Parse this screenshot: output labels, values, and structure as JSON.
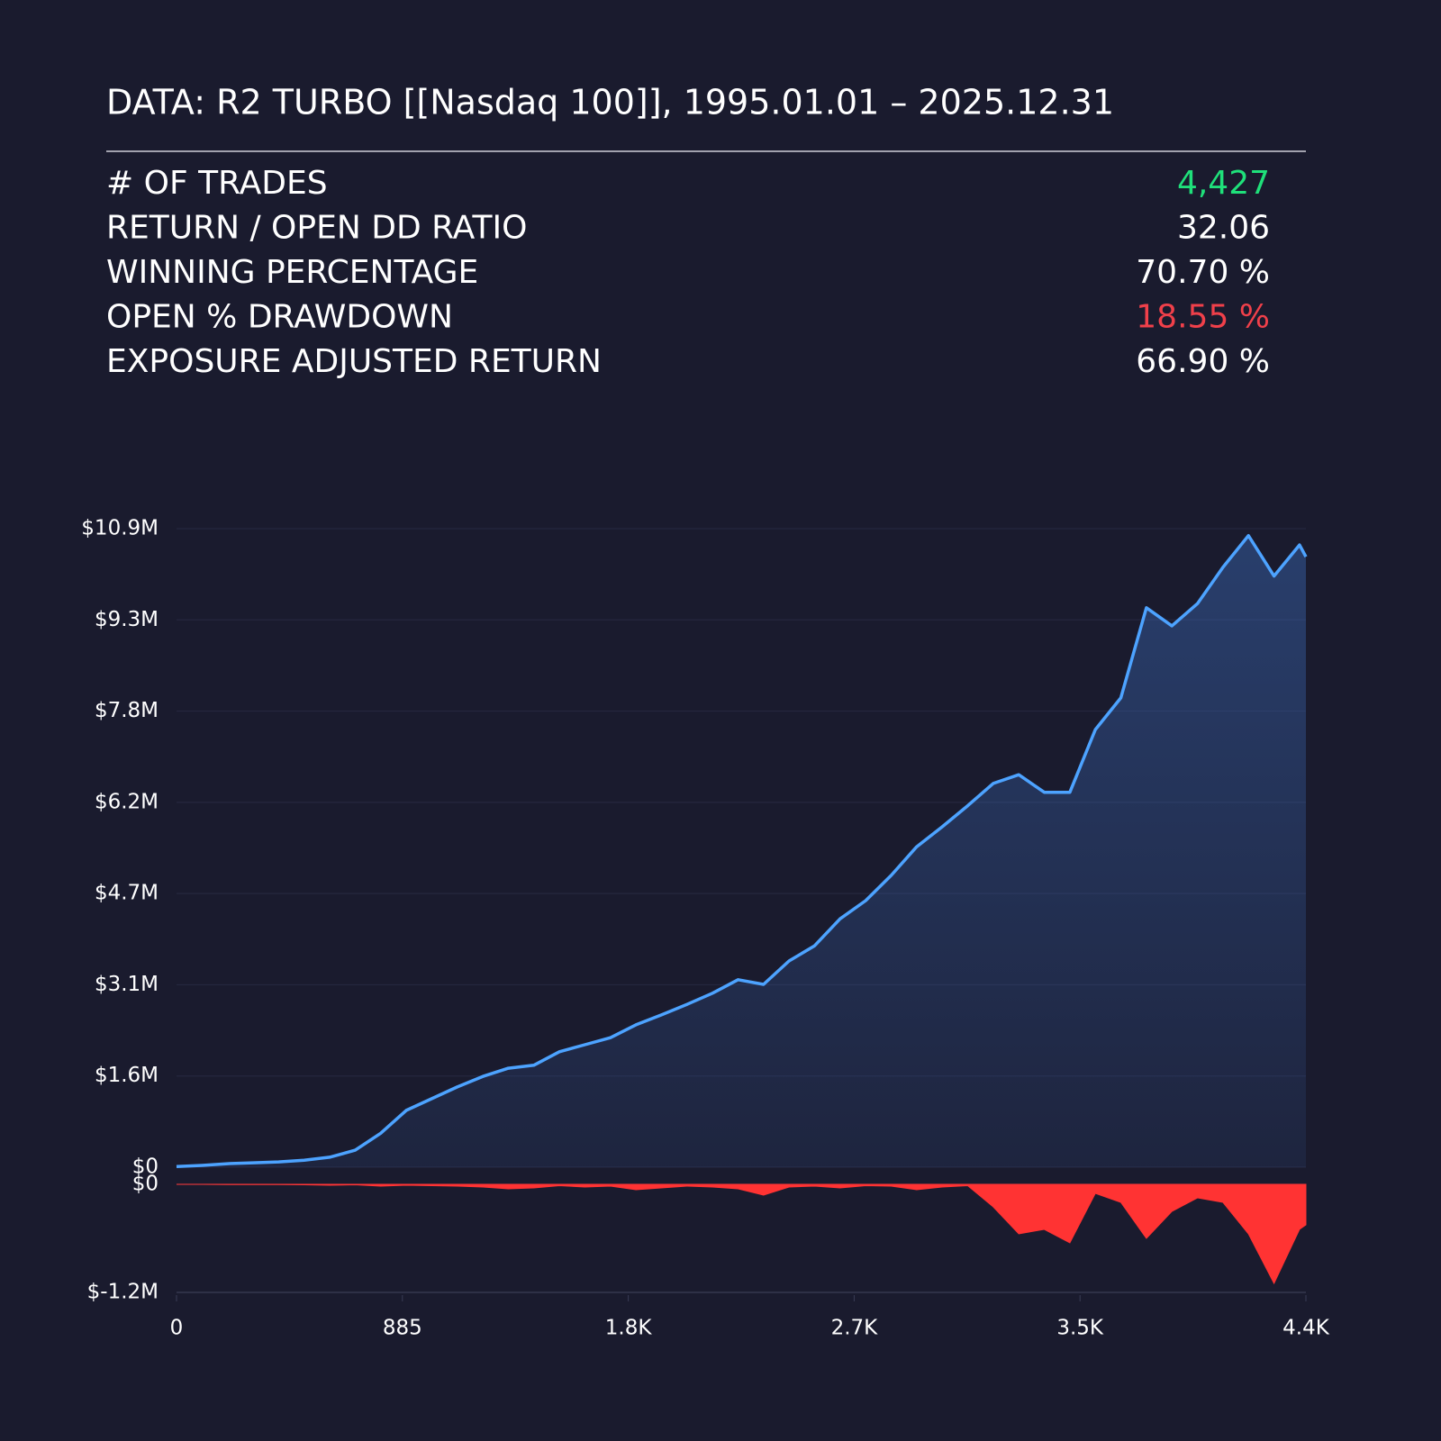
{
  "header": {
    "title": "DATA: R2 TURBO [[Nasdaq 100]], 1995.01.01 – 2025.12.31"
  },
  "stats": {
    "rows": [
      {
        "label": "# OF TRADES",
        "value": "4,427",
        "color": "#1fe07a"
      },
      {
        "label": "RETURN / OPEN DD RATIO",
        "value": "32.06",
        "color": "#ffffff"
      },
      {
        "label": "WINNING PERCENTAGE",
        "value": "70.70 %",
        "color": "#ffffff"
      },
      {
        "label": "OPEN % DRAWDOWN",
        "value": "18.55 %",
        "color": "#f0404a"
      },
      {
        "label": "EXPOSURE ADJUSTED RETURN",
        "value": "66.90 %",
        "color": "#ffffff"
      }
    ]
  },
  "chart_data": [
    {
      "type": "area",
      "color": "#4da3ff",
      "grid": true,
      "x": [
        0,
        100,
        200,
        300,
        400,
        500,
        600,
        700,
        800,
        900,
        1000,
        1100,
        1200,
        1300,
        1400,
        1500,
        1600,
        1700,
        1800,
        1900,
        2000,
        2100,
        2200,
        2300,
        2400,
        2500,
        2600,
        2700,
        2800,
        2900,
        3000,
        3100,
        3200,
        3300,
        3400,
        3500,
        3600,
        3700,
        3800,
        3900,
        4000,
        4100,
        4200,
        4300,
        4400,
        4425
      ],
      "values": [
        10000,
        30000,
        60000,
        75000,
        90000,
        120000,
        170000,
        290000,
        580000,
        970000,
        1170000,
        1370000,
        1550000,
        1690000,
        1740000,
        1970000,
        2090000,
        2210000,
        2430000,
        2600000,
        2780000,
        2970000,
        3200000,
        3120000,
        3520000,
        3780000,
        4240000,
        4550000,
        4980000,
        5470000,
        5810000,
        6170000,
        6550000,
        6700000,
        6400000,
        6400000,
        7470000,
        8010000,
        9550000,
        9240000,
        9620000,
        10240000,
        10780000,
        10090000,
        10620000,
        10420000
      ],
      "xlim": [
        0,
        4425
      ],
      "ylim": [
        0,
        10899000
      ],
      "yticks": [
        {
          "value": 0,
          "label": "$0"
        },
        {
          "value": 1557000,
          "label": "$1.6M"
        },
        {
          "value": 3114000,
          "label": "$3.1M"
        },
        {
          "value": 4671000,
          "label": "$4.7M"
        },
        {
          "value": 6228000,
          "label": "$6.2M"
        },
        {
          "value": 7785000,
          "label": "$7.8M"
        },
        {
          "value": 9342000,
          "label": "$9.3M"
        },
        {
          "value": 10899000,
          "label": "$10.9M"
        }
      ]
    },
    {
      "type": "area",
      "color": "#ff3333",
      "grid": false,
      "x": [
        0,
        100,
        200,
        300,
        400,
        500,
        600,
        700,
        800,
        900,
        1000,
        1100,
        1200,
        1300,
        1400,
        1500,
        1600,
        1700,
        1800,
        1900,
        2000,
        2100,
        2200,
        2300,
        2400,
        2500,
        2600,
        2700,
        2800,
        2900,
        3000,
        3100,
        3200,
        3300,
        3400,
        3500,
        3600,
        3700,
        3800,
        3900,
        4000,
        4100,
        4200,
        4300,
        4400,
        4425
      ],
      "values": [
        0,
        0,
        -2000,
        -3000,
        -2000,
        -5000,
        -10000,
        -5000,
        -20000,
        -10000,
        -15000,
        -20000,
        -30000,
        -50000,
        -40000,
        -15000,
        -30000,
        -20000,
        -60000,
        -40000,
        -20000,
        -30000,
        -50000,
        -120000,
        -30000,
        -20000,
        -40000,
        -15000,
        -20000,
        -60000,
        -30000,
        -15000,
        -250000,
        -550000,
        -500000,
        -650000,
        -100000,
        -200000,
        -600000,
        -300000,
        -150000,
        -200000,
        -550000,
        -1100000,
        -500000,
        -450000
      ],
      "xlim": [
        0,
        4425
      ],
      "ylim": [
        -1200000,
        0
      ],
      "yticks": [
        {
          "value": 0,
          "label": "$0"
        },
        {
          "value": -1200000,
          "label": "$-1.2M"
        }
      ],
      "xticks": [
        0,
        885,
        {
          "value": 1770,
          "label": "1.8K"
        },
        {
          "value": 2655,
          "label": "2.7K"
        },
        {
          "value": 3540,
          "label": "3.5K"
        },
        {
          "value": 4425,
          "label": "4.4K"
        }
      ]
    }
  ]
}
